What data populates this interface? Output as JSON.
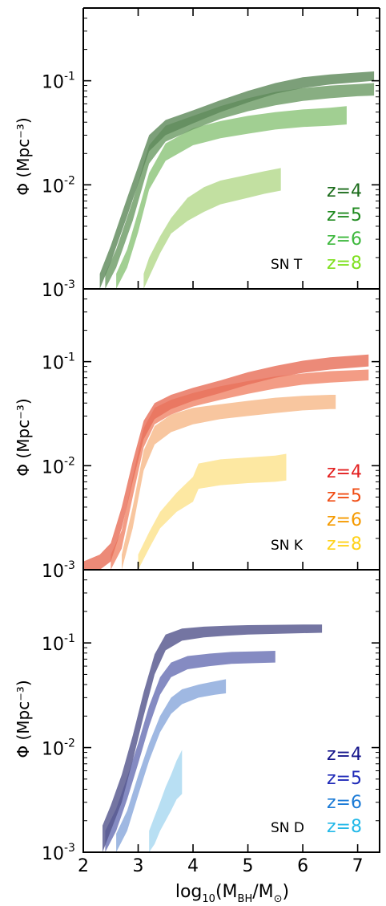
{
  "chart_data": [
    {
      "type": "area",
      "panel_label": "SN T",
      "ylabel": "Φ (Mpc⁻³)",
      "ylim": [
        0.001,
        0.5
      ],
      "yscale": "log",
      "xlim": [
        2,
        7.4
      ],
      "yticks": [
        {
          "value": 0.001,
          "base": "10",
          "exp": "-3"
        },
        {
          "value": 0.01,
          "base": "10",
          "exp": "-2"
        },
        {
          "value": 0.1,
          "base": "10",
          "exp": "-1"
        }
      ],
      "legend_placement": "bottom-right",
      "series": [
        {
          "name": "z=4",
          "color": "#5f8a5c",
          "text_color": "#1a6b1a",
          "x": [
            2.3,
            2.5,
            2.8,
            3.2,
            3.5,
            4.0,
            4.5,
            5.0,
            5.5,
            6.0,
            6.5,
            7.0,
            7.3
          ],
          "low": [
            0.001,
            0.0018,
            0.005,
            0.021,
            0.03,
            0.039,
            0.05,
            0.062,
            0.075,
            0.085,
            0.092,
            0.097,
            0.1
          ],
          "high": [
            0.0014,
            0.0026,
            0.0075,
            0.03,
            0.042,
            0.052,
            0.065,
            0.08,
            0.095,
            0.108,
            0.115,
            0.12,
            0.123
          ]
        },
        {
          "name": "z=5",
          "color": "#6e9c66",
          "text_color": "#1f8a1f",
          "x": [
            2.4,
            2.6,
            2.9,
            3.2,
            3.5,
            4.0,
            4.5,
            5.0,
            5.5,
            6.0,
            6.5,
            7.0,
            7.3
          ],
          "low": [
            0.001,
            0.0016,
            0.0045,
            0.016,
            0.026,
            0.034,
            0.043,
            0.051,
            0.058,
            0.064,
            0.068,
            0.071,
            0.072
          ],
          "high": [
            0.0014,
            0.0024,
            0.007,
            0.024,
            0.037,
            0.046,
            0.057,
            0.068,
            0.078,
            0.085,
            0.09,
            0.093,
            0.095
          ]
        },
        {
          "name": "z=6",
          "color": "#8cc47a",
          "text_color": "#3db83d",
          "x": [
            2.6,
            2.8,
            3.0,
            3.2,
            3.5,
            4.0,
            4.5,
            5.0,
            5.5,
            6.0,
            6.5,
            6.8
          ],
          "low": [
            0.001,
            0.0016,
            0.0035,
            0.009,
            0.017,
            0.024,
            0.028,
            0.031,
            0.034,
            0.036,
            0.037,
            0.038
          ],
          "high": [
            0.0014,
            0.0024,
            0.0055,
            0.013,
            0.025,
            0.035,
            0.041,
            0.046,
            0.05,
            0.053,
            0.055,
            0.057
          ]
        },
        {
          "name": "z=8",
          "color": "#b5d98c",
          "text_color": "#7fe01f",
          "x": [
            3.1,
            3.2,
            3.4,
            3.6,
            3.9,
            4.2,
            4.5,
            5.0,
            5.3,
            5.6
          ],
          "low": [
            0.001,
            0.0013,
            0.0022,
            0.0034,
            0.0045,
            0.0055,
            0.0065,
            0.0075,
            0.0082,
            0.0088
          ],
          "high": [
            0.0014,
            0.002,
            0.0032,
            0.0048,
            0.0075,
            0.0095,
            0.011,
            0.0125,
            0.0135,
            0.0145
          ]
        }
      ]
    },
    {
      "type": "area",
      "panel_label": "SN K",
      "ylabel": "Φ (Mpc⁻³)",
      "ylim": [
        0.001,
        0.5
      ],
      "yscale": "log",
      "xlim": [
        2,
        7.4
      ],
      "yticks": [
        {
          "value": 0.001,
          "base": "10",
          "exp": "-3"
        },
        {
          "value": 0.01,
          "base": "10",
          "exp": "-2"
        },
        {
          "value": 0.1,
          "base": "10",
          "exp": "-1"
        }
      ],
      "legend_placement": "bottom-right",
      "series": [
        {
          "name": "z=4",
          "color": "#e8705a",
          "text_color": "#e32020",
          "x": [
            2.0,
            2.3,
            2.5,
            2.7,
            2.9,
            3.1,
            3.3,
            3.6,
            4.0,
            4.5,
            5.0,
            5.5,
            6.0,
            6.5,
            7.0,
            7.2
          ],
          "low": [
            0.001,
            0.001,
            0.0012,
            0.0025,
            0.007,
            0.018,
            0.028,
            0.035,
            0.042,
            0.05,
            0.06,
            0.07,
            0.078,
            0.084,
            0.088,
            0.09
          ],
          "high": [
            0.0012,
            0.0014,
            0.0018,
            0.004,
            0.011,
            0.027,
            0.04,
            0.048,
            0.056,
            0.066,
            0.079,
            0.091,
            0.102,
            0.11,
            0.115,
            0.117
          ]
        },
        {
          "name": "z=5",
          "color": "#f0866a",
          "text_color": "#f04d14",
          "x": [
            2.5,
            2.7,
            2.9,
            3.1,
            3.3,
            3.6,
            4.0,
            4.5,
            5.0,
            5.5,
            6.0,
            6.5,
            7.0,
            7.2
          ],
          "low": [
            0.001,
            0.0016,
            0.005,
            0.015,
            0.025,
            0.031,
            0.037,
            0.043,
            0.049,
            0.055,
            0.06,
            0.063,
            0.065,
            0.066
          ],
          "high": [
            0.0014,
            0.0024,
            0.0078,
            0.023,
            0.036,
            0.043,
            0.05,
            0.058,
            0.065,
            0.072,
            0.077,
            0.081,
            0.083,
            0.084
          ]
        },
        {
          "name": "z=6",
          "color": "#f7b98a",
          "text_color": "#f59a00",
          "x": [
            2.7,
            2.9,
            3.1,
            3.3,
            3.6,
            4.0,
            4.5,
            5.0,
            5.5,
            6.0,
            6.5,
            6.6
          ],
          "low": [
            0.001,
            0.0025,
            0.009,
            0.016,
            0.021,
            0.025,
            0.028,
            0.03,
            0.032,
            0.034,
            0.035,
            0.035
          ],
          "high": [
            0.0014,
            0.004,
            0.014,
            0.024,
            0.031,
            0.036,
            0.039,
            0.042,
            0.045,
            0.047,
            0.048,
            0.048
          ]
        },
        {
          "name": "z=8",
          "color": "#fde38e",
          "text_color": "#ffd21a",
          "x": [
            3.0,
            3.2,
            3.4,
            3.7,
            4.0,
            4.1,
            4.5,
            5.0,
            5.5,
            5.7
          ],
          "low": [
            0.001,
            0.0016,
            0.0025,
            0.0036,
            0.0045,
            0.006,
            0.0065,
            0.0068,
            0.007,
            0.0072
          ],
          "high": [
            0.0014,
            0.0023,
            0.0036,
            0.0055,
            0.0078,
            0.0105,
            0.0115,
            0.012,
            0.0125,
            0.013
          ]
        }
      ]
    },
    {
      "type": "area",
      "panel_label": "SN D",
      "ylabel": "Φ (Mpc⁻³)",
      "ylim": [
        0.001,
        0.5
      ],
      "yscale": "log",
      "xlim": [
        2,
        7.4
      ],
      "yticks": [
        {
          "value": 0.001,
          "base": "10",
          "exp": "-3"
        },
        {
          "value": 0.01,
          "base": "10",
          "exp": "-2"
        },
        {
          "value": 0.1,
          "base": "10",
          "exp": "-1"
        }
      ],
      "legend_placement": "bottom-right",
      "series": [
        {
          "name": "z=4",
          "color": "#55578e",
          "text_color": "#14148a",
          "x": [
            2.35,
            2.5,
            2.7,
            2.9,
            3.1,
            3.3,
            3.5,
            3.8,
            4.2,
            4.6,
            5.0,
            5.5,
            6.0,
            6.35
          ],
          "low": [
            0.001,
            0.0016,
            0.003,
            0.0075,
            0.02,
            0.05,
            0.085,
            0.105,
            0.113,
            0.117,
            0.12,
            0.122,
            0.124,
            0.125
          ],
          "high": [
            0.0018,
            0.0028,
            0.0055,
            0.013,
            0.034,
            0.078,
            0.12,
            0.137,
            0.143,
            0.146,
            0.148,
            0.149,
            0.15,
            0.15
          ]
        },
        {
          "name": "z=5",
          "color": "#6a72b4",
          "text_color": "#1f2ab8",
          "x": [
            2.4,
            2.6,
            2.8,
            3.0,
            3.2,
            3.4,
            3.6,
            3.9,
            4.3,
            4.7,
            5.1,
            5.5
          ],
          "low": [
            0.001,
            0.0016,
            0.0032,
            0.007,
            0.016,
            0.032,
            0.047,
            0.056,
            0.06,
            0.063,
            0.064,
            0.065
          ],
          "high": [
            0.0016,
            0.0026,
            0.0052,
            0.011,
            0.025,
            0.047,
            0.065,
            0.075,
            0.079,
            0.082,
            0.083,
            0.084
          ]
        },
        {
          "name": "z=6",
          "color": "#8aa8dc",
          "text_color": "#1a7ad6",
          "x": [
            2.6,
            2.8,
            3.0,
            3.2,
            3.4,
            3.6,
            3.8,
            4.1,
            4.4,
            4.6
          ],
          "low": [
            0.001,
            0.0016,
            0.0035,
            0.0075,
            0.014,
            0.021,
            0.026,
            0.03,
            0.032,
            0.033
          ],
          "high": [
            0.0015,
            0.0025,
            0.0054,
            0.011,
            0.02,
            0.03,
            0.036,
            0.04,
            0.043,
            0.045
          ]
        },
        {
          "name": "z=8",
          "color": "#a8d8f0",
          "text_color": "#22b8e8",
          "x": [
            3.2,
            3.3,
            3.4,
            3.5,
            3.6,
            3.7,
            3.8
          ],
          "low": [
            0.001,
            0.0012,
            0.0016,
            0.002,
            0.0025,
            0.0032,
            0.0036
          ],
          "high": [
            0.0016,
            0.0022,
            0.003,
            0.0042,
            0.0055,
            0.0075,
            0.0095
          ]
        }
      ]
    }
  ],
  "shared_xaxis": {
    "label_base": "log",
    "label_sub": "10",
    "label_inner": "(M",
    "label_inner_sub": "BH",
    "label_mid": "/M",
    "label_sun": "⊙",
    "label_close": ")",
    "ticks": [
      "2",
      "3",
      "4",
      "5",
      "6",
      "7"
    ]
  }
}
